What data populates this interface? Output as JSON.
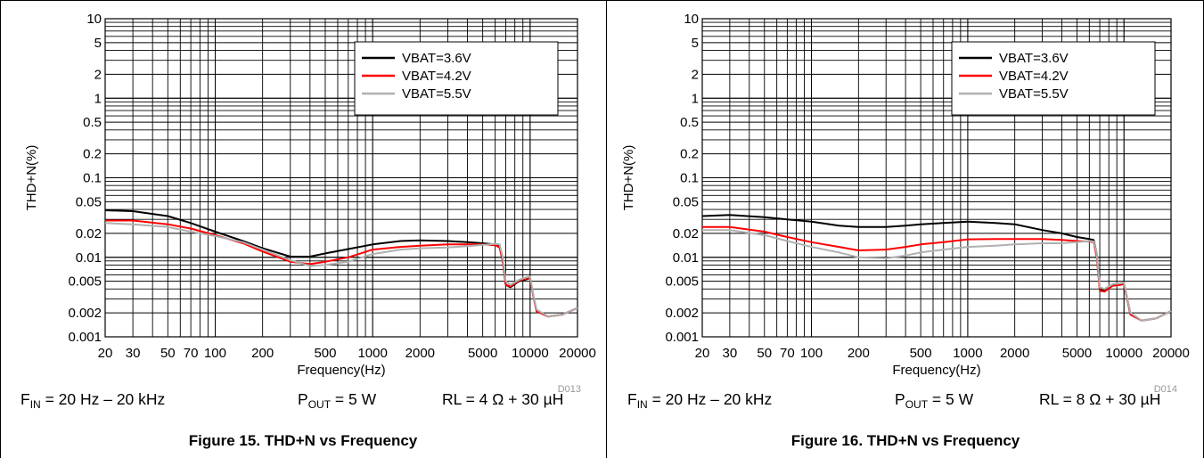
{
  "chart_data": [
    {
      "type": "line",
      "figure_id": "D013",
      "caption": "Figure 15. THD+N vs Frequency",
      "xlabel": "Frequency(Hz)",
      "ylabel": "THD+N(%)",
      "xscale": "log",
      "yscale": "log",
      "xlim": [
        20,
        20000
      ],
      "ylim": [
        0.001,
        10
      ],
      "xticks": [
        "20",
        "30",
        "50",
        "70",
        "100",
        "200",
        "500",
        "1000",
        "2000",
        "5000",
        "10000",
        "20000"
      ],
      "xtick_values": [
        20,
        30,
        50,
        70,
        100,
        200,
        500,
        1000,
        2000,
        5000,
        10000,
        20000
      ],
      "yticks": [
        "10",
        "5",
        "2",
        "1",
        "0.5",
        "0.2",
        "0.1",
        "0.05",
        "0.02",
        "0.01",
        "0.005",
        "0.002",
        "0.001"
      ],
      "ytick_values": [
        10,
        5,
        2,
        1,
        0.5,
        0.2,
        0.1,
        0.05,
        0.02,
        0.01,
        0.005,
        0.002,
        0.001
      ],
      "grid": true,
      "legend_position": "top-right",
      "conditions": {
        "fin_prefix": "F",
        "fin_sub": "IN",
        "fin_text": " = 20 Hz – 20 kHz",
        "pout_prefix": "P",
        "pout_sub": "OUT",
        "pout_text": " = 5 W",
        "rl_text": "RL = 4 Ω + 30 µH"
      },
      "series": [
        {
          "name": "VBAT=3.6V",
          "color": "#000000",
          "points": [
            [
              20,
              0.039
            ],
            [
              30,
              0.038
            ],
            [
              50,
              0.033
            ],
            [
              70,
              0.027
            ],
            [
              100,
              0.021
            ],
            [
              150,
              0.016
            ],
            [
              200,
              0.013
            ],
            [
              300,
              0.0102
            ],
            [
              400,
              0.0102
            ],
            [
              500,
              0.0112
            ],
            [
              700,
              0.0127
            ],
            [
              1000,
              0.0145
            ],
            [
              1500,
              0.016
            ],
            [
              2000,
              0.0163
            ],
            [
              3000,
              0.016
            ],
            [
              4000,
              0.0155
            ],
            [
              5000,
              0.015
            ],
            [
              6000,
              0.0145
            ],
            [
              6400,
              0.0135
            ],
            [
              6700,
              0.009
            ],
            [
              7000,
              0.0045
            ],
            [
              7500,
              0.0042
            ],
            [
              8500,
              0.005
            ],
            [
              9500,
              0.0053
            ],
            [
              10000,
              0.0055
            ],
            [
              10500,
              0.0032
            ],
            [
              11000,
              0.0021
            ],
            [
              13000,
              0.0018
            ],
            [
              16000,
              0.0019
            ],
            [
              20000,
              0.0023
            ]
          ]
        },
        {
          "name": "VBAT=4.2V",
          "color": "#ff0000",
          "points": [
            [
              20,
              0.029
            ],
            [
              30,
              0.029
            ],
            [
              50,
              0.026
            ],
            [
              70,
              0.023
            ],
            [
              100,
              0.019
            ],
            [
              150,
              0.015
            ],
            [
              200,
              0.0118
            ],
            [
              300,
              0.0088
            ],
            [
              400,
              0.0082
            ],
            [
              500,
              0.0088
            ],
            [
              700,
              0.01
            ],
            [
              1000,
              0.0125
            ],
            [
              1500,
              0.0135
            ],
            [
              2000,
              0.014
            ],
            [
              3000,
              0.0145
            ],
            [
              4000,
              0.0145
            ],
            [
              5000,
              0.0145
            ],
            [
              6000,
              0.0142
            ],
            [
              6400,
              0.0133
            ],
            [
              6700,
              0.009
            ],
            [
              7000,
              0.0045
            ],
            [
              7500,
              0.0043
            ],
            [
              8500,
              0.0051
            ],
            [
              9500,
              0.0054
            ],
            [
              10000,
              0.0055
            ],
            [
              10500,
              0.0032
            ],
            [
              11000,
              0.0021
            ],
            [
              13000,
              0.0018
            ],
            [
              16000,
              0.0019
            ],
            [
              20000,
              0.0023
            ]
          ]
        },
        {
          "name": "VBAT=5.5V",
          "color": "#b0b0b0",
          "points": [
            [
              20,
              0.027
            ],
            [
              30,
              0.026
            ],
            [
              50,
              0.024
            ],
            [
              70,
              0.021
            ],
            [
              100,
              0.0185
            ],
            [
              150,
              0.0155
            ],
            [
              200,
              0.0125
            ],
            [
              300,
              0.0092
            ],
            [
              400,
              0.0078
            ],
            [
              500,
              0.008
            ],
            [
              700,
              0.0088
            ],
            [
              1000,
              0.011
            ],
            [
              1500,
              0.0125
            ],
            [
              2000,
              0.013
            ],
            [
              3000,
              0.0133
            ],
            [
              4000,
              0.0138
            ],
            [
              5000,
              0.0143
            ],
            [
              6000,
              0.0148
            ],
            [
              6400,
              0.0145
            ],
            [
              6700,
              0.01
            ],
            [
              7000,
              0.005
            ],
            [
              7500,
              0.0045
            ],
            [
              8500,
              0.0052
            ],
            [
              9500,
              0.0056
            ],
            [
              10000,
              0.0057
            ],
            [
              10500,
              0.0033
            ],
            [
              11000,
              0.0022
            ],
            [
              13000,
              0.0018
            ],
            [
              16000,
              0.0019
            ],
            [
              20000,
              0.0023
            ]
          ]
        }
      ]
    },
    {
      "type": "line",
      "figure_id": "D014",
      "caption": "Figure 16. THD+N vs Frequency",
      "xlabel": "Frequency(Hz)",
      "ylabel": "THD+N(%)",
      "xscale": "log",
      "yscale": "log",
      "xlim": [
        20,
        20000
      ],
      "ylim": [
        0.001,
        10
      ],
      "xticks": [
        "20",
        "30",
        "50",
        "70",
        "100",
        "200",
        "500",
        "1000",
        "2000",
        "5000",
        "10000",
        "20000"
      ],
      "xtick_values": [
        20,
        30,
        50,
        70,
        100,
        200,
        500,
        1000,
        2000,
        5000,
        10000,
        20000
      ],
      "yticks": [
        "10",
        "5",
        "2",
        "1",
        "0.5",
        "0.2",
        "0.1",
        "0.05",
        "0.02",
        "0.01",
        "0.005",
        "0.002",
        "0.001"
      ],
      "ytick_values": [
        10,
        5,
        2,
        1,
        0.5,
        0.2,
        0.1,
        0.05,
        0.02,
        0.01,
        0.005,
        0.002,
        0.001
      ],
      "grid": true,
      "legend_position": "top-right",
      "conditions": {
        "fin_prefix": "F",
        "fin_sub": "IN",
        "fin_text": " = 20 Hz – 20 kHz",
        "pout_prefix": "P",
        "pout_sub": "OUT",
        "pout_text": " = 5 W",
        "rl_text": "RL = 8 Ω + 30 µH"
      },
      "series": [
        {
          "name": "VBAT=3.6V",
          "color": "#000000",
          "points": [
            [
              20,
              0.033
            ],
            [
              30,
              0.034
            ],
            [
              50,
              0.032
            ],
            [
              70,
              0.03
            ],
            [
              100,
              0.028
            ],
            [
              150,
              0.025
            ],
            [
              200,
              0.024
            ],
            [
              300,
              0.024
            ],
            [
              400,
              0.025
            ],
            [
              500,
              0.026
            ],
            [
              700,
              0.027
            ],
            [
              1000,
              0.028
            ],
            [
              1500,
              0.027
            ],
            [
              2000,
              0.026
            ],
            [
              3000,
              0.022
            ],
            [
              4000,
              0.02
            ],
            [
              5000,
              0.018
            ],
            [
              6000,
              0.017
            ],
            [
              6400,
              0.0165
            ],
            [
              6700,
              0.011
            ],
            [
              7000,
              0.004
            ],
            [
              7500,
              0.0038
            ],
            [
              8500,
              0.0045
            ],
            [
              9500,
              0.0046
            ],
            [
              10000,
              0.0047
            ],
            [
              10500,
              0.003
            ],
            [
              11000,
              0.0019
            ],
            [
              13000,
              0.0016
            ],
            [
              16000,
              0.0017
            ],
            [
              20000,
              0.0021
            ]
          ]
        },
        {
          "name": "VBAT=4.2V",
          "color": "#ff0000",
          "points": [
            [
              20,
              0.024
            ],
            [
              30,
              0.024
            ],
            [
              50,
              0.021
            ],
            [
              70,
              0.018
            ],
            [
              100,
              0.0155
            ],
            [
              150,
              0.0135
            ],
            [
              200,
              0.0122
            ],
            [
              300,
              0.0125
            ],
            [
              400,
              0.0135
            ],
            [
              500,
              0.0145
            ],
            [
              700,
              0.0155
            ],
            [
              1000,
              0.0168
            ],
            [
              1500,
              0.017
            ],
            [
              2000,
              0.017
            ],
            [
              3000,
              0.017
            ],
            [
              4000,
              0.0165
            ],
            [
              5000,
              0.016
            ],
            [
              6000,
              0.0158
            ],
            [
              6400,
              0.0155
            ],
            [
              6700,
              0.01
            ],
            [
              7000,
              0.0038
            ],
            [
              7500,
              0.0037
            ],
            [
              8500,
              0.0044
            ],
            [
              9500,
              0.0045
            ],
            [
              10000,
              0.0046
            ],
            [
              10500,
              0.003
            ],
            [
              11000,
              0.0019
            ],
            [
              13000,
              0.0016
            ],
            [
              16000,
              0.0017
            ],
            [
              20000,
              0.0021
            ]
          ]
        },
        {
          "name": "VBAT=5.5V",
          "color": "#b0b0b0",
          "points": [
            [
              20,
              0.022
            ],
            [
              30,
              0.022
            ],
            [
              50,
              0.019
            ],
            [
              70,
              0.016
            ],
            [
              100,
              0.0135
            ],
            [
              150,
              0.0115
            ],
            [
              200,
              0.01
            ],
            [
              300,
              0.0097
            ],
            [
              400,
              0.0105
            ],
            [
              500,
              0.0115
            ],
            [
              700,
              0.0125
            ],
            [
              1000,
              0.0135
            ],
            [
              1500,
              0.014
            ],
            [
              2000,
              0.0145
            ],
            [
              3000,
              0.015
            ],
            [
              4000,
              0.015
            ],
            [
              5000,
              0.0155
            ],
            [
              6000,
              0.016
            ],
            [
              6400,
              0.0158
            ],
            [
              6700,
              0.011
            ],
            [
              7000,
              0.0042
            ],
            [
              7500,
              0.004
            ],
            [
              8500,
              0.0046
            ],
            [
              9500,
              0.0047
            ],
            [
              10000,
              0.0048
            ],
            [
              10500,
              0.0031
            ],
            [
              11000,
              0.002
            ],
            [
              13000,
              0.0016
            ],
            [
              16000,
              0.0017
            ],
            [
              20000,
              0.0021
            ]
          ]
        }
      ]
    }
  ]
}
